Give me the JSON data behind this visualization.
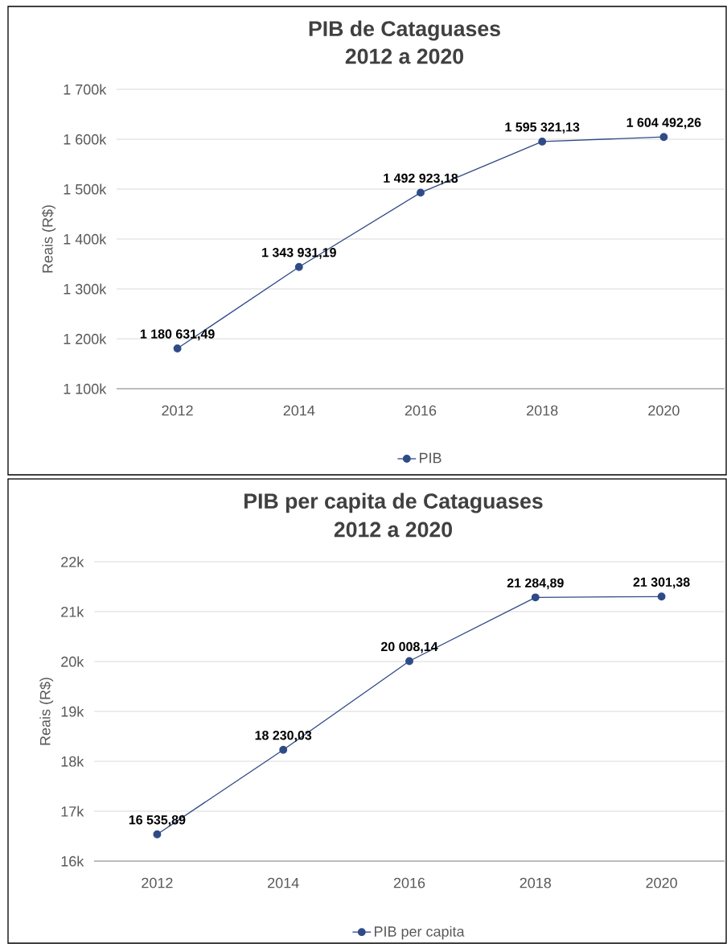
{
  "chart_data": [
    {
      "type": "line",
      "title": "PIB de Cataguases",
      "subtitle": "2012 a 2020",
      "ylabel": "Reais (R$)",
      "categories": [
        "2012",
        "2014",
        "2016",
        "2018",
        "2020"
      ],
      "series": [
        {
          "name": "PIB",
          "color": "#2f4b87",
          "values": [
            1180631.49,
            1343931.19,
            1492923.18,
            1595321.13,
            1604492.26
          ],
          "value_labels": [
            "1 180 631,49",
            "1 343 931,19",
            "1 492 923,18",
            "1 595 321,13",
            "1 604 492,26"
          ]
        }
      ],
      "ylim": [
        1100000,
        1700000
      ],
      "yticks": [
        {
          "value": 1100000,
          "label": "1 100k"
        },
        {
          "value": 1200000,
          "label": "1 200k"
        },
        {
          "value": 1300000,
          "label": "1 300k"
        },
        {
          "value": 1400000,
          "label": "1 400k"
        },
        {
          "value": 1500000,
          "label": "1 500k"
        },
        {
          "value": 1600000,
          "label": "1 600k"
        },
        {
          "value": 1700000,
          "label": "1 700k"
        }
      ],
      "grid": "y",
      "legend": "bottom",
      "marker": "circle",
      "line_style": "solid"
    },
    {
      "type": "line",
      "title": "PIB per capita de Cataguases",
      "subtitle": "2012 a 2020",
      "ylabel": "Reais (R$)",
      "categories": [
        "2012",
        "2014",
        "2016",
        "2018",
        "2020"
      ],
      "series": [
        {
          "name": "PIB per capita",
          "color": "#2f4b87",
          "values": [
            16535.89,
            18230.03,
            20008.14,
            21284.89,
            21301.38
          ],
          "value_labels": [
            "16 535,89",
            "18 230,03",
            "20 008,14",
            "21 284,89",
            "21 301,38"
          ]
        }
      ],
      "ylim": [
        16000,
        22000
      ],
      "yticks": [
        {
          "value": 16000,
          "label": "16k"
        },
        {
          "value": 17000,
          "label": "17k"
        },
        {
          "value": 18000,
          "label": "18k"
        },
        {
          "value": 19000,
          "label": "19k"
        },
        {
          "value": 20000,
          "label": "20k"
        },
        {
          "value": 21000,
          "label": "21k"
        },
        {
          "value": 22000,
          "label": "22k"
        }
      ],
      "grid": "y",
      "legend": "bottom",
      "marker": "circle",
      "line_style": "solid"
    }
  ]
}
